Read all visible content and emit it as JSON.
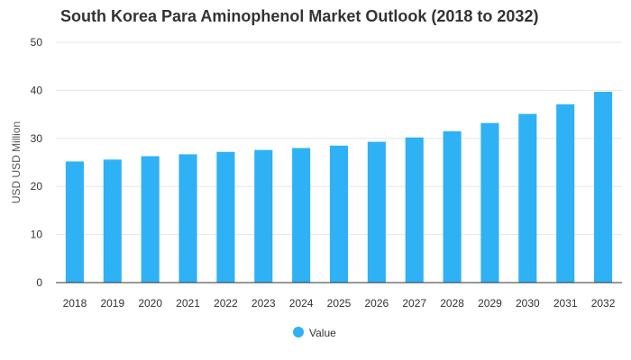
{
  "chart_data": {
    "type": "bar",
    "title": "South Korea Para Aminophenol Market Outlook (2018 to 2032)",
    "ylabel": "USD USD Million",
    "xlabel": "",
    "ylim": [
      0,
      50
    ],
    "yticks": [
      0,
      10,
      20,
      30,
      40,
      50
    ],
    "grid": true,
    "legend_position": "bottom-center",
    "categories": [
      "2018",
      "2019",
      "2020",
      "2021",
      "2022",
      "2023",
      "2024",
      "2025",
      "2026",
      "2027",
      "2028",
      "2029",
      "2030",
      "2031",
      "2032"
    ],
    "series": [
      {
        "name": "Value",
        "color": "#2FB1F5",
        "values": [
          25.2,
          25.6,
          26.3,
          26.7,
          27.2,
          27.6,
          28.0,
          28.5,
          29.3,
          30.2,
          31.5,
          33.2,
          35.1,
          37.1,
          39.7
        ]
      }
    ]
  }
}
